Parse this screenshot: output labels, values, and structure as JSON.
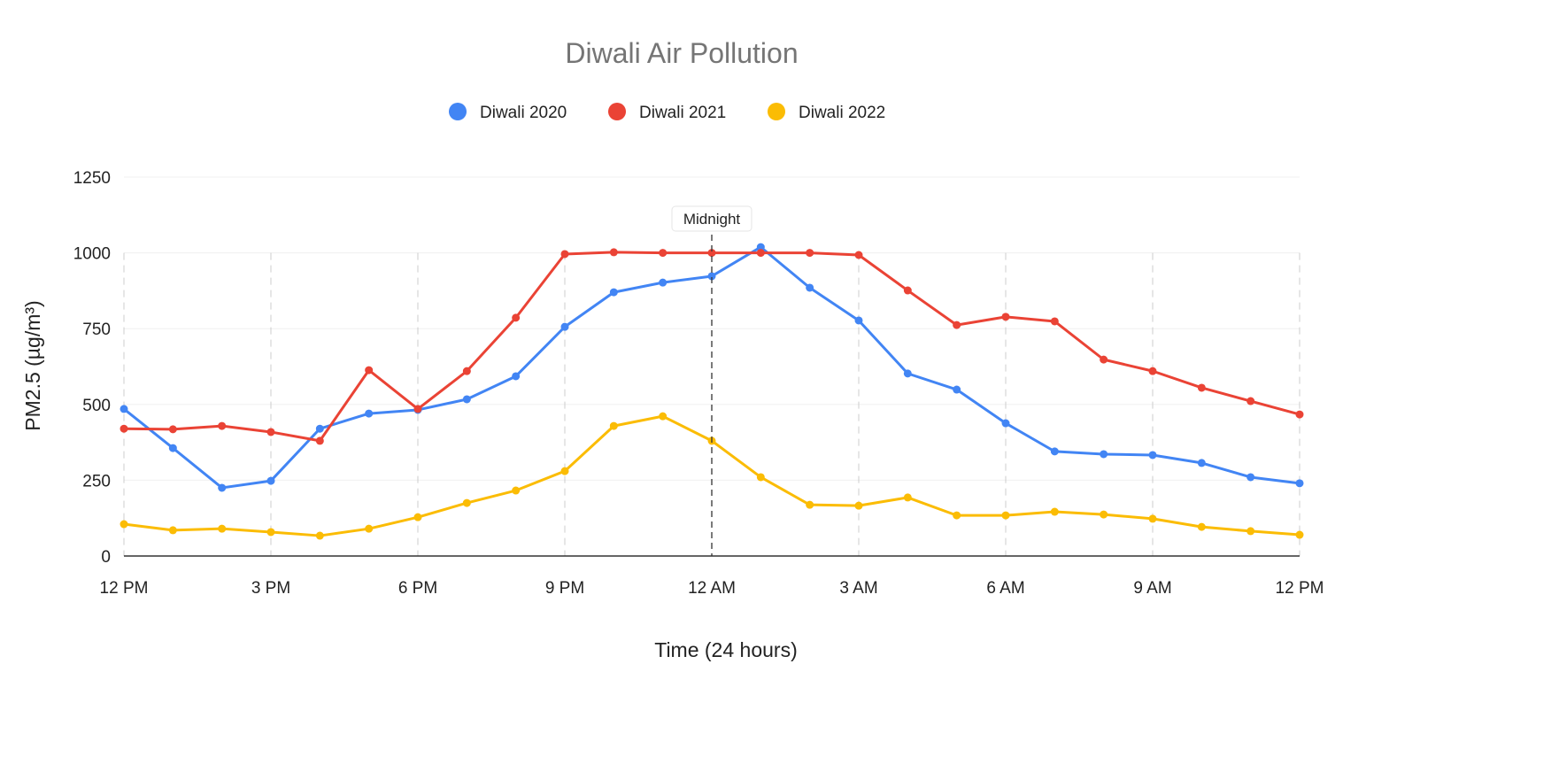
{
  "chart_data": {
    "type": "line",
    "title": "Diwali Air Pollution",
    "xlabel": "Time (24 hours)",
    "ylabel": "PM2.5 (µg/m³)",
    "ylim": [
      0,
      1250
    ],
    "yticks": [
      0,
      250,
      500,
      750,
      1000,
      1250
    ],
    "x": [
      0,
      1,
      2,
      3,
      4,
      5,
      6,
      7,
      8,
      9,
      10,
      11,
      12,
      13,
      14,
      15,
      16,
      17,
      18,
      19,
      20,
      21,
      22,
      23,
      24
    ],
    "xticks": [
      {
        "x": 0,
        "label": "12 PM"
      },
      {
        "x": 3,
        "label": "3 PM"
      },
      {
        "x": 6,
        "label": "6 PM"
      },
      {
        "x": 9,
        "label": "9 PM"
      },
      {
        "x": 12,
        "label": "12 AM"
      },
      {
        "x": 15,
        "label": "3 AM"
      },
      {
        "x": 18,
        "label": "6 AM"
      },
      {
        "x": 21,
        "label": "9 AM"
      },
      {
        "x": 24,
        "label": "12 PM"
      }
    ],
    "grid": true,
    "legend_position": "top",
    "annotation": {
      "x": 12,
      "label": "Midnight"
    },
    "series": [
      {
        "name": "Diwali 2020",
        "color": "#4285f4",
        "values": [
          485,
          356,
          225,
          248,
          420,
          470,
          482,
          517,
          593,
          756,
          870,
          902,
          923,
          1019,
          885,
          777,
          602,
          549,
          438,
          345,
          336,
          333,
          307,
          260,
          240
        ]
      },
      {
        "name": "Diwali 2021",
        "color": "#ea4335",
        "values": [
          420,
          418,
          429,
          409,
          380,
          613,
          485,
          610,
          786,
          996,
          1002,
          1000,
          1000,
          1000,
          1000,
          993,
          876,
          762,
          789,
          774,
          648,
          610,
          555,
          511,
          467
        ]
      },
      {
        "name": "Diwali 2022",
        "color": "#fbbc04",
        "values": [
          105,
          85,
          90,
          79,
          67,
          90,
          128,
          175,
          216,
          280,
          429,
          461,
          380,
          260,
          169,
          166,
          193,
          134,
          134,
          146,
          137,
          123,
          96,
          82,
          70
        ]
      }
    ]
  }
}
